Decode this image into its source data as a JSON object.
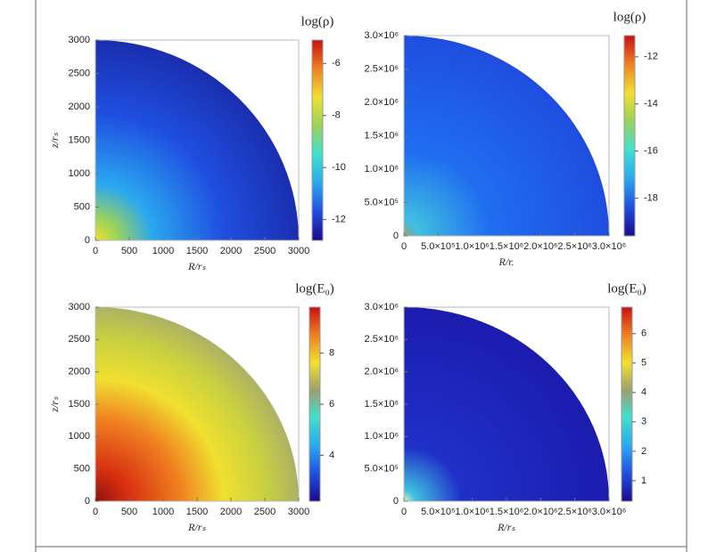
{
  "chart_data": [
    {
      "type": "heatmap",
      "xlabel": "R/rₛ",
      "ylabel": "z/rₛ",
      "xlim": [
        0,
        3000
      ],
      "ylim": [
        0,
        3000
      ],
      "xticks": [
        0,
        500,
        1000,
        1500,
        2000,
        2500,
        3000
      ],
      "yticks": [
        0,
        500,
        1000,
        1500,
        2000,
        2500,
        3000
      ],
      "colorbar": {
        "label": "log(ρ)",
        "clim": [
          -12.8,
          -5.1
        ],
        "ticks": [
          -12,
          -10,
          -8,
          -6
        ]
      },
      "colormap": [
        "#1a0a8c",
        "#1f4fe0",
        "#2aa8f0",
        "#40e0d0",
        "#9ad25a",
        "#f0e030",
        "#f08020",
        "#c81010"
      ]
    },
    {
      "type": "heatmap",
      "xlabel": "R/r.",
      "ylabel": "",
      "xlim": [
        0,
        3000000
      ],
      "ylim": [
        0,
        3000000
      ],
      "xticks": [
        0,
        {
          "value": 500000,
          "label": "5.0×10⁵"
        },
        {
          "value": 1000000,
          "label": "1.0×10⁶"
        },
        {
          "value": 1500000,
          "label": "1.5×10⁶"
        },
        {
          "value": 2000000,
          "label": "2.0×10⁶"
        },
        {
          "value": 2500000,
          "label": "2.5×10⁶"
        },
        {
          "value": 3000000,
          "label": "3.0×10⁶"
        }
      ],
      "yticks": [
        0,
        {
          "value": 500000,
          "label": "5.0×10⁵"
        },
        {
          "value": 1000000,
          "label": "1.0×10⁶"
        },
        {
          "value": 1500000,
          "label": "1.5×10⁶"
        },
        {
          "value": 2000000,
          "label": "2.0×10⁶"
        },
        {
          "value": 2500000,
          "label": "2.5×10⁶"
        },
        {
          "value": 3000000,
          "label": "3.0×10⁶"
        }
      ],
      "colorbar": {
        "label": "log(ρ)",
        "clim": [
          -19.6,
          -11.1
        ],
        "ticks": [
          -18,
          -16,
          -14,
          -12
        ]
      },
      "colormap": [
        "#1a0a8c",
        "#1f4fe0",
        "#2aa8f0",
        "#40e0d0",
        "#9ad25a",
        "#f0e030",
        "#f08020",
        "#c81010"
      ]
    },
    {
      "type": "heatmap",
      "xlabel": "R/rₛ",
      "ylabel": "z/rₛ",
      "xlim": [
        0,
        3000
      ],
      "ylim": [
        0,
        3000
      ],
      "xticks": [
        0,
        500,
        1000,
        1500,
        2000,
        2500,
        3000
      ],
      "yticks": [
        0,
        500,
        1000,
        1500,
        2000,
        2500,
        3000
      ],
      "colorbar": {
        "label": "log(E₀)",
        "clim": [
          2.2,
          9.8
        ],
        "ticks": [
          4,
          6,
          8
        ]
      },
      "colormap": [
        "#1a0a8c",
        "#1f4fe0",
        "#2aa8f0",
        "#40e0d0",
        "#9ca070",
        "#f0e030",
        "#f08020",
        "#c81010"
      ]
    },
    {
      "type": "heatmap",
      "xlabel": "R/rₛ",
      "ylabel": "",
      "xlim": [
        0,
        3000000
      ],
      "ylim": [
        0,
        3000000
      ],
      "xticks": [
        0,
        {
          "value": 500000,
          "label": "5.0×10⁵"
        },
        {
          "value": 1000000,
          "label": "1.0×10⁶"
        },
        {
          "value": 1500000,
          "label": "1.5×10⁶"
        },
        {
          "value": 2000000,
          "label": "2.0×10⁶"
        },
        {
          "value": 2500000,
          "label": "2.5×10⁶"
        },
        {
          "value": 3000000,
          "label": "3.0×10⁶"
        }
      ],
      "yticks": [
        0,
        {
          "value": 500000,
          "label": "5.0×10⁵"
        },
        {
          "value": 1000000,
          "label": "1.0×10⁶"
        },
        {
          "value": 1500000,
          "label": "1.5×10⁶"
        },
        {
          "value": 2000000,
          "label": "2.0×10⁶"
        },
        {
          "value": 2500000,
          "label": "2.5×10⁶"
        },
        {
          "value": 3000000,
          "label": "3.0×10⁶"
        }
      ],
      "colorbar": {
        "label": "log(E₀)",
        "clim": [
          0.3,
          6.9
        ],
        "ticks": [
          1,
          2,
          3,
          4,
          5,
          6
        ]
      },
      "colormap": [
        "#1a0a8c",
        "#1f4fe0",
        "#2aa8f0",
        "#40e0d0",
        "#9ca070",
        "#f0e030",
        "#f08020",
        "#c81010"
      ]
    }
  ]
}
